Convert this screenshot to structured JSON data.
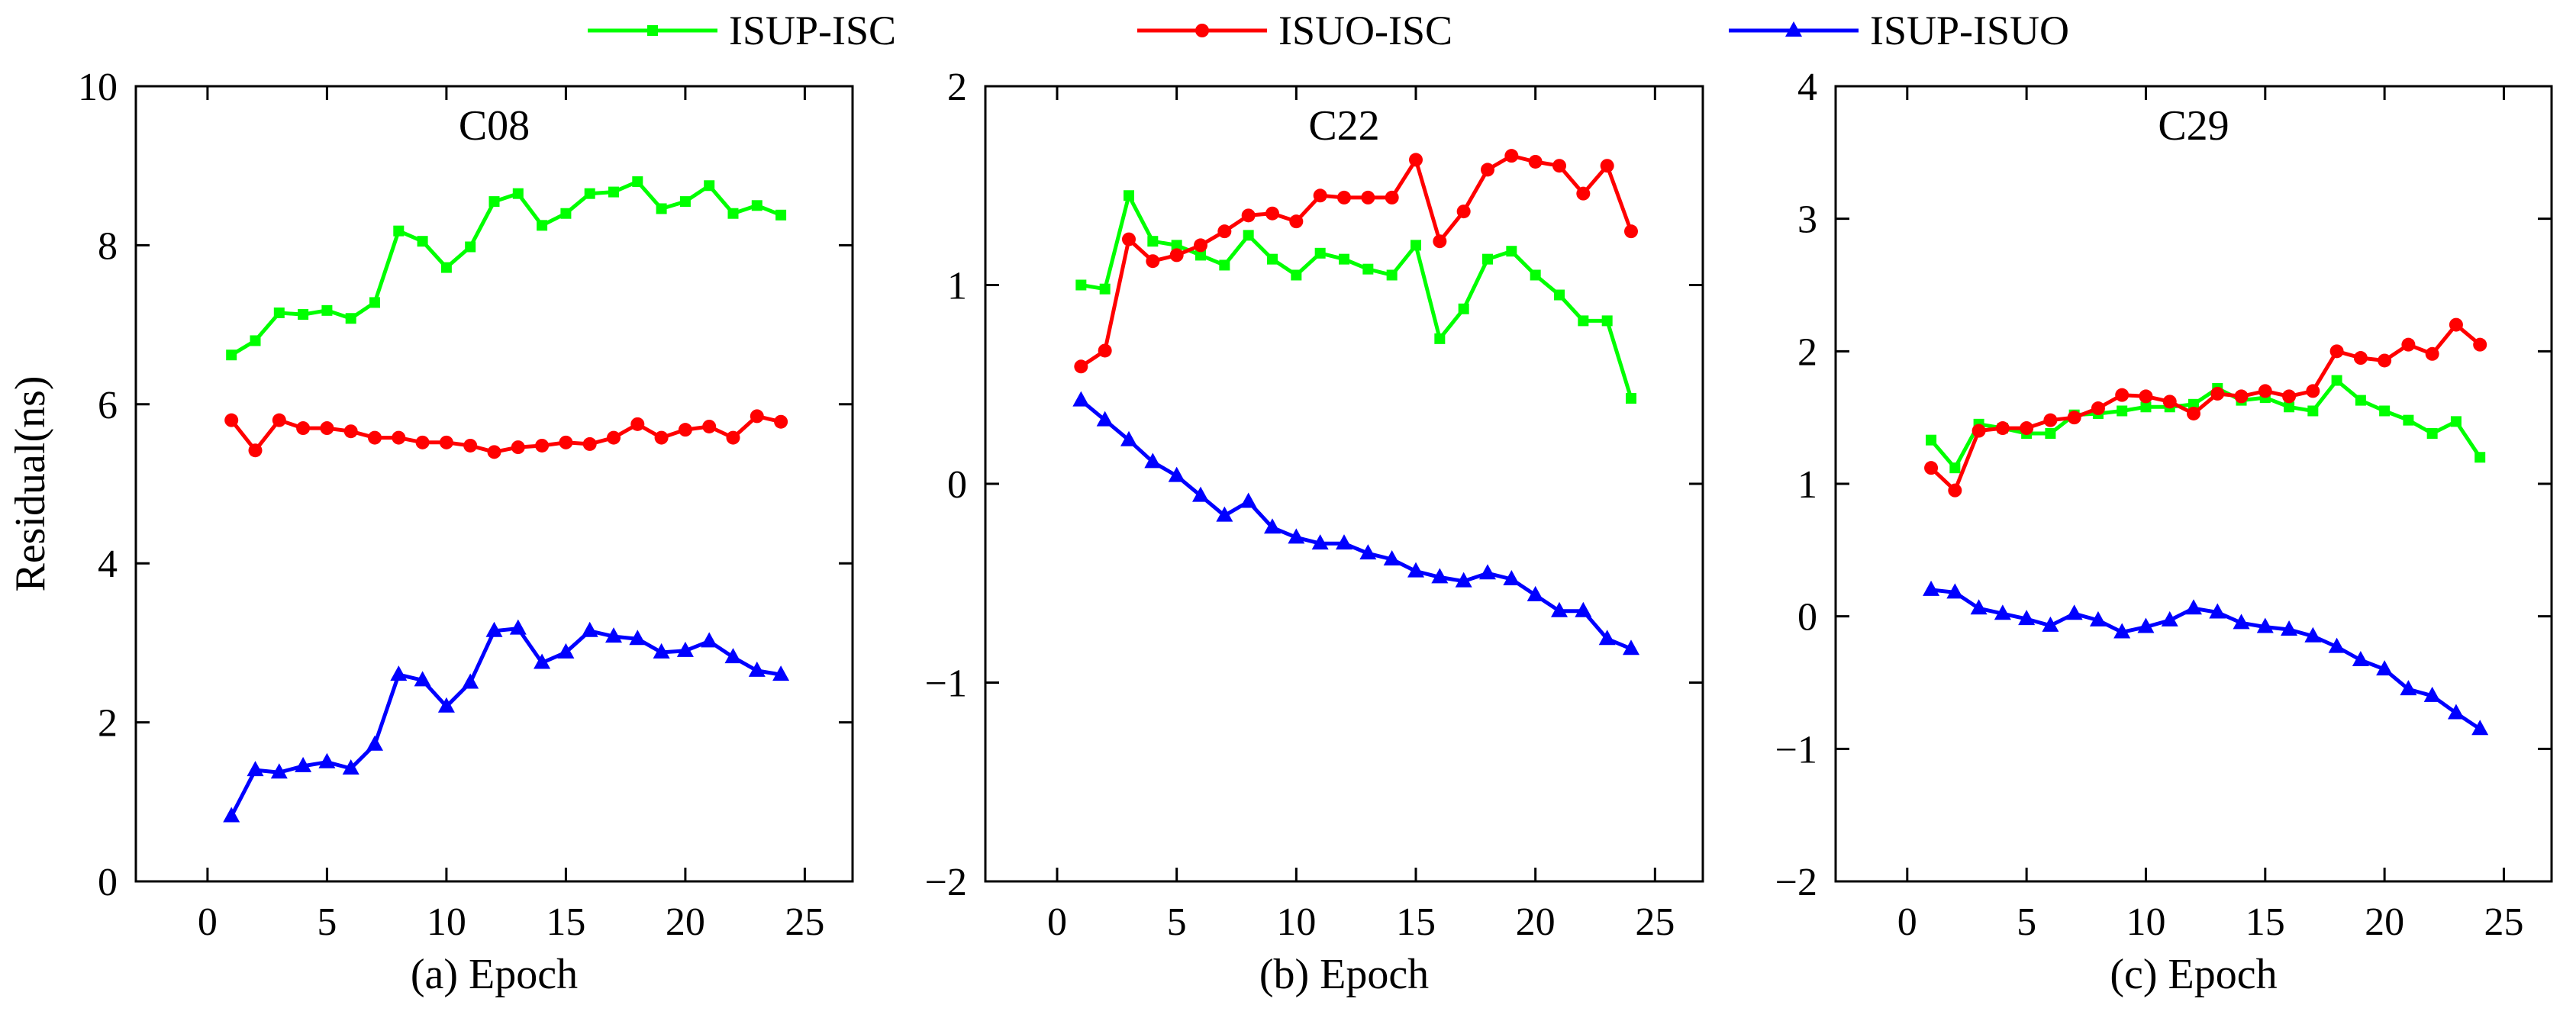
{
  "legend": {
    "entries": [
      {
        "name": "ISUP-ISC",
        "color": "#00ff00",
        "marker": "square"
      },
      {
        "name": "ISUO-ISC",
        "color": "#ff0000",
        "marker": "circle"
      },
      {
        "name": "ISUP-ISUO",
        "color": "#0000ff",
        "marker": "triangle"
      }
    ]
  },
  "chart_data": [
    {
      "type": "line",
      "title": "C08",
      "xlabel": "(a) Epoch",
      "ylabel": "Residual(ns)",
      "xlim": [
        -3,
        27
      ],
      "ylim": [
        0,
        10
      ],
      "xticks": [
        0,
        5,
        10,
        15,
        20,
        25
      ],
      "yticks": [
        0,
        2,
        4,
        6,
        8,
        10
      ],
      "ytick_labels": [
        "0",
        "2",
        "4",
        "6",
        "8",
        "10"
      ],
      "x": [
        1,
        2,
        3,
        4,
        5,
        6,
        7,
        8,
        9,
        10,
        11,
        12,
        13,
        14,
        15,
        16,
        17,
        18,
        19,
        20,
        21,
        22,
        23,
        24
      ],
      "series": [
        {
          "name": "ISUP-ISC",
          "values": [
            6.62,
            6.8,
            7.15,
            7.13,
            7.18,
            7.08,
            7.28,
            8.18,
            8.05,
            7.72,
            7.98,
            8.55,
            8.65,
            8.25,
            8.4,
            8.65,
            8.67,
            8.8,
            8.46,
            8.55,
            8.75,
            8.4,
            8.5,
            8.38
          ]
        },
        {
          "name": "ISUO-ISC",
          "values": [
            5.8,
            5.42,
            5.8,
            5.7,
            5.7,
            5.66,
            5.58,
            5.58,
            5.52,
            5.52,
            5.48,
            5.4,
            5.46,
            5.48,
            5.52,
            5.5,
            5.58,
            5.75,
            5.58,
            5.68,
            5.72,
            5.58,
            5.85,
            5.78
          ]
        },
        {
          "name": "ISUP-ISUO",
          "values": [
            0.82,
            1.4,
            1.37,
            1.45,
            1.5,
            1.42,
            1.72,
            2.6,
            2.53,
            2.2,
            2.5,
            3.15,
            3.18,
            2.75,
            2.88,
            3.15,
            3.08,
            3.05,
            2.88,
            2.9,
            3.02,
            2.82,
            2.65,
            2.6
          ]
        }
      ]
    },
    {
      "type": "line",
      "title": "C22",
      "xlabel": "(b) Epoch",
      "ylabel": "",
      "xlim": [
        -3,
        27
      ],
      "ylim": [
        -2,
        2
      ],
      "xticks": [
        0,
        5,
        10,
        15,
        20,
        25
      ],
      "yticks": [
        -2,
        -1,
        0,
        1,
        2
      ],
      "ytick_labels": [
        "−2",
        "−1",
        "0",
        "1",
        "2"
      ],
      "x": [
        1,
        2,
        3,
        4,
        5,
        6,
        7,
        8,
        9,
        10,
        11,
        12,
        13,
        14,
        15,
        16,
        17,
        18,
        19,
        20,
        21,
        22,
        23,
        24
      ],
      "series": [
        {
          "name": "ISUP-ISC",
          "values": [
            1.0,
            0.98,
            1.45,
            1.22,
            1.2,
            1.15,
            1.1,
            1.25,
            1.13,
            1.05,
            1.16,
            1.13,
            1.08,
            1.05,
            1.2,
            0.73,
            0.88,
            1.13,
            1.17,
            1.05,
            0.95,
            0.82,
            0.82,
            0.43
          ]
        },
        {
          "name": "ISUO-ISC",
          "values": [
            0.59,
            0.67,
            1.23,
            1.12,
            1.15,
            1.2,
            1.27,
            1.35,
            1.36,
            1.32,
            1.45,
            1.44,
            1.44,
            1.44,
            1.63,
            1.22,
            1.37,
            1.58,
            1.65,
            1.62,
            1.6,
            1.46,
            1.6,
            1.27
          ]
        },
        {
          "name": "ISUP-ISUO",
          "values": [
            0.42,
            0.32,
            0.22,
            0.11,
            0.04,
            -0.06,
            -0.16,
            -0.09,
            -0.22,
            -0.27,
            -0.3,
            -0.3,
            -0.35,
            -0.38,
            -0.44,
            -0.47,
            -0.49,
            -0.45,
            -0.48,
            -0.56,
            -0.64,
            -0.64,
            -0.78,
            -0.83
          ]
        }
      ]
    },
    {
      "type": "line",
      "title": "C29",
      "xlabel": "(c) Epoch",
      "ylabel": "",
      "xlim": [
        -3,
        27
      ],
      "ylim": [
        -2,
        4
      ],
      "xticks": [
        0,
        5,
        10,
        15,
        20,
        25
      ],
      "yticks": [
        -2,
        -1,
        0,
        1,
        2,
        3,
        4
      ],
      "ytick_labels": [
        "−2",
        "−1",
        "0",
        "1",
        "2",
        "3",
        "4"
      ],
      "x": [
        1,
        2,
        3,
        4,
        5,
        6,
        7,
        8,
        9,
        10,
        11,
        12,
        13,
        14,
        15,
        16,
        17,
        18,
        19,
        20,
        21,
        22,
        23,
        24
      ],
      "series": [
        {
          "name": "ISUP-ISC",
          "values": [
            1.33,
            1.12,
            1.45,
            1.42,
            1.38,
            1.38,
            1.52,
            1.53,
            1.55,
            1.58,
            1.58,
            1.6,
            1.72,
            1.63,
            1.65,
            1.58,
            1.55,
            1.78,
            1.63,
            1.55,
            1.48,
            1.38,
            1.47,
            1.2
          ]
        },
        {
          "name": "ISUO-ISC",
          "values": [
            1.12,
            0.95,
            1.4,
            1.42,
            1.42,
            1.48,
            1.5,
            1.57,
            1.67,
            1.66,
            1.62,
            1.53,
            1.68,
            1.66,
            1.7,
            1.66,
            1.7,
            2.0,
            1.95,
            1.93,
            2.05,
            1.98,
            2.2,
            2.05
          ]
        },
        {
          "name": "ISUP-ISUO",
          "values": [
            0.2,
            0.18,
            0.06,
            0.02,
            -0.02,
            -0.07,
            0.02,
            -0.03,
            -0.12,
            -0.08,
            -0.03,
            0.06,
            0.03,
            -0.05,
            -0.08,
            -0.1,
            -0.15,
            -0.23,
            -0.33,
            -0.4,
            -0.55,
            -0.6,
            -0.73,
            -0.85
          ]
        }
      ]
    }
  ]
}
